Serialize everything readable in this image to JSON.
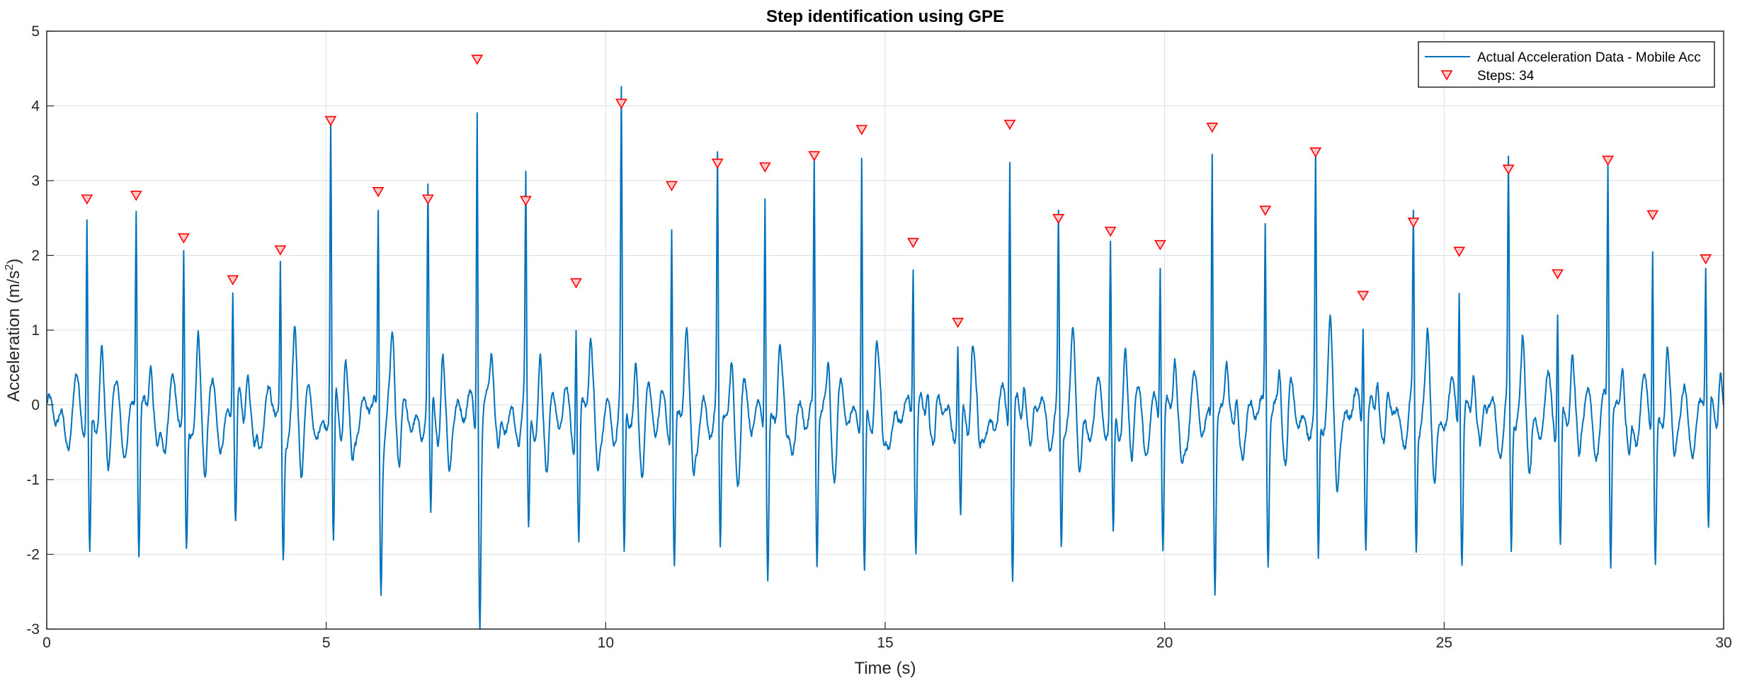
{
  "chart_data": {
    "type": "line",
    "title": "Step identification using GPE",
    "xlabel": "Time (s)",
    "ylabel": "Acceleration (m/s",
    "ylabel_superscript": "2",
    "ylabel_close": ")",
    "xlim": [
      0,
      30
    ],
    "ylim": [
      -3,
      5
    ],
    "x_ticks": [
      0,
      5,
      10,
      15,
      20,
      25,
      30
    ],
    "y_ticks": [
      -3,
      -2,
      -1,
      0,
      1,
      2,
      3,
      4,
      5
    ],
    "grid": true,
    "legend_position": "top-right",
    "series": [
      {
        "name": "Actual Acceleration Data - Mobile Acc",
        "color": "#0072BD",
        "style": "line"
      },
      {
        "name": "Steps: 34",
        "color": "#FF0000",
        "style": "downward-triangle-marker",
        "x": [
          0.72,
          1.6,
          2.45,
          3.33,
          4.18,
          5.08,
          5.93,
          6.82,
          7.7,
          8.57,
          9.47,
          10.28,
          11.18,
          12.0,
          12.85,
          13.73,
          14.58,
          15.5,
          16.3,
          17.23,
          18.1,
          19.03,
          19.92,
          20.85,
          21.8,
          22.7,
          23.55,
          24.45,
          25.27,
          26.15,
          27.03,
          27.93,
          28.73,
          29.68
        ],
        "values": [
          2.75,
          2.8,
          2.23,
          1.67,
          2.07,
          3.8,
          2.85,
          2.75,
          4.62,
          2.73,
          1.63,
          4.03,
          2.93,
          3.23,
          3.18,
          3.33,
          3.68,
          2.17,
          1.1,
          3.75,
          2.49,
          2.32,
          2.14,
          3.71,
          2.6,
          3.38,
          1.46,
          2.44,
          2.05,
          3.15,
          1.75,
          3.27,
          2.54,
          1.95
        ]
      }
    ]
  }
}
